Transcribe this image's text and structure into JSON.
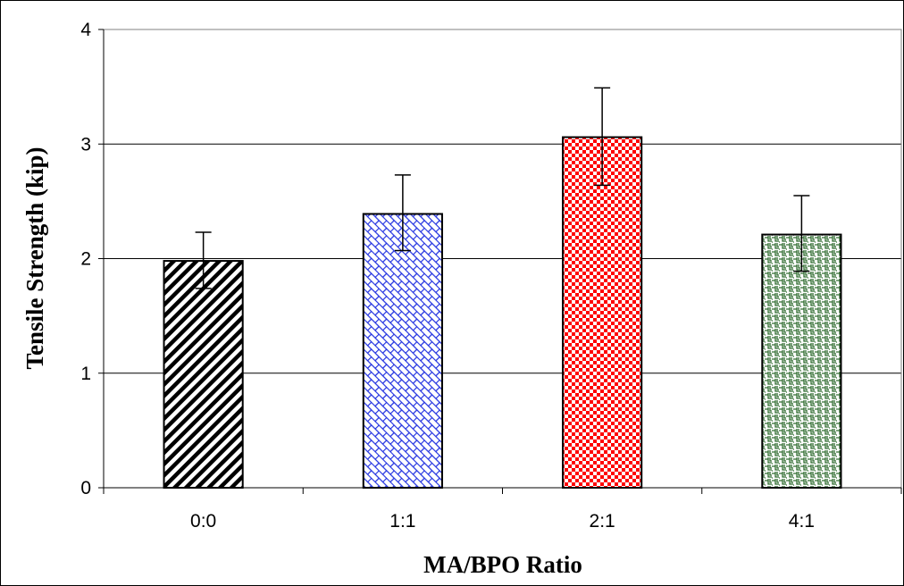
{
  "chart_data": {
    "type": "bar",
    "categories": [
      "0:0",
      "1:1",
      "2:1",
      "4:1"
    ],
    "values": [
      1.98,
      2.39,
      3.06,
      2.21
    ],
    "error_low": [
      1.74,
      2.07,
      2.64,
      1.89
    ],
    "error_high": [
      2.23,
      2.73,
      3.49,
      2.55
    ],
    "patterns": [
      "diagonal-stripes",
      "blue-lattice",
      "red-checker",
      "green-weave"
    ],
    "colors": [
      "#000000",
      "#2030e0",
      "#ff0000",
      "#2e6b2e"
    ],
    "xlabel": "MA/BPO Ratio",
    "ylabel": "Tensile Strength (kip)",
    "ylim": [
      0,
      4
    ],
    "yticks": [
      "0",
      "1",
      "2",
      "3",
      "4"
    ],
    "grid": true,
    "legend": "none"
  }
}
